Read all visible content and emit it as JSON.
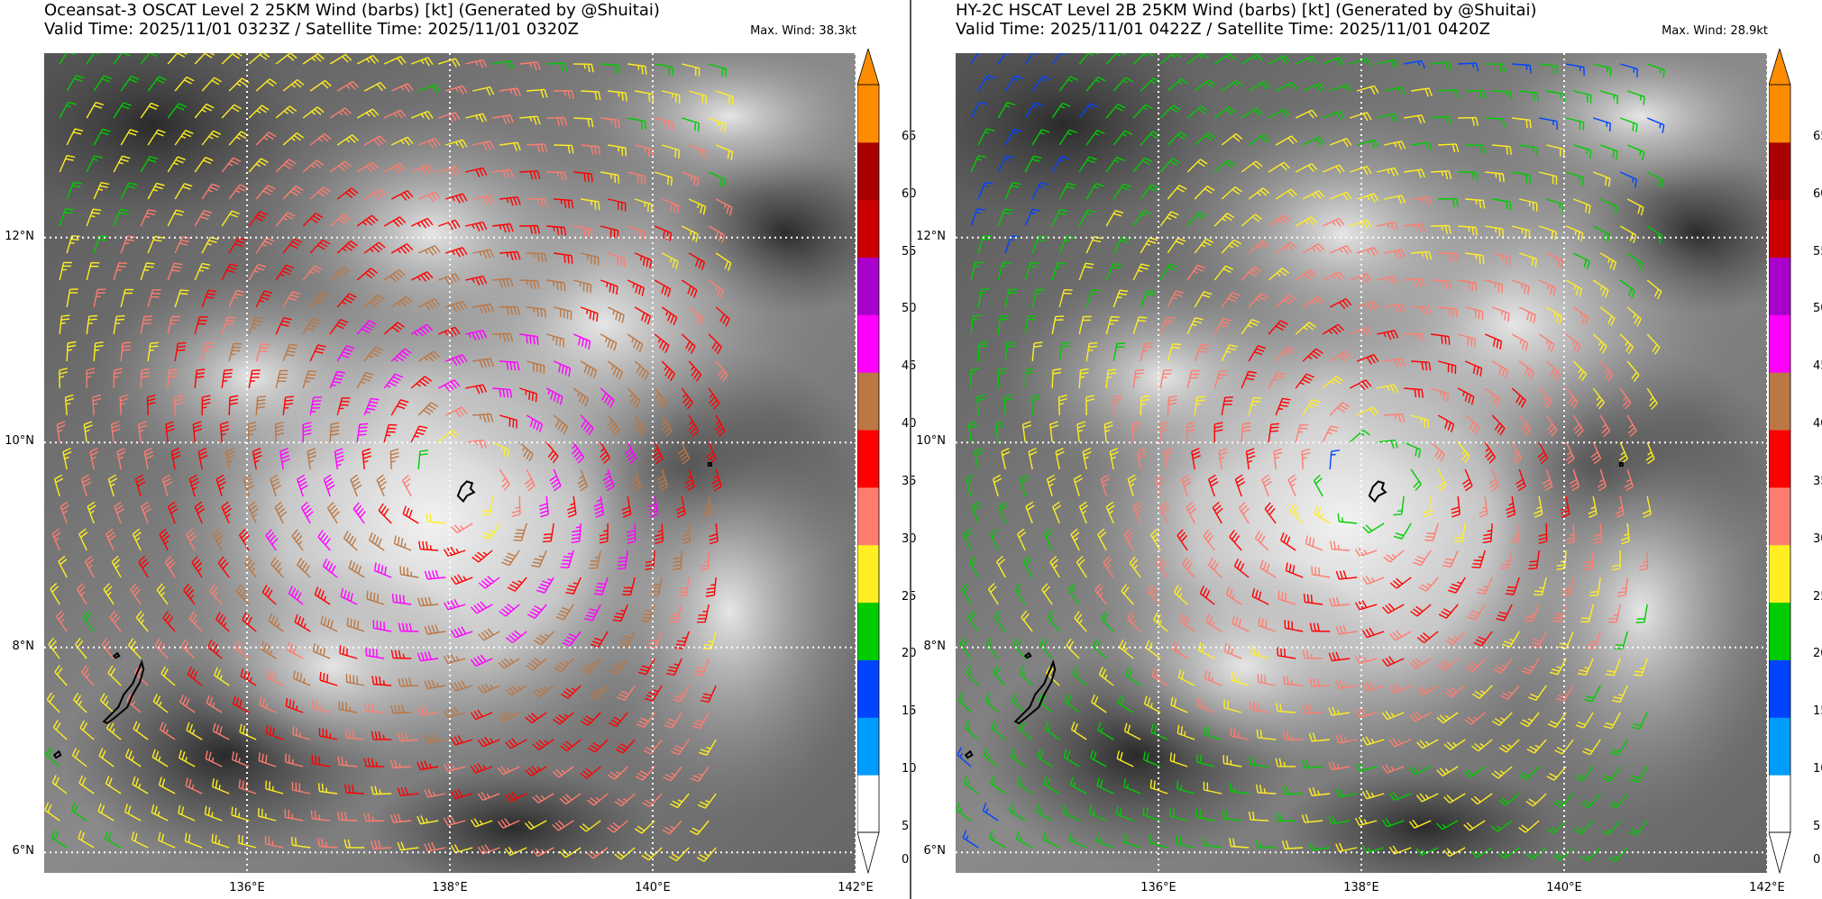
{
  "panels": [
    {
      "id": "left",
      "title_line1": "Oceansat-3 OSCAT Level 2 25KM Wind (barbs) [kt] (Generated by @Shuitai)",
      "title_line2": "Valid Time: 2025/11/01 0323Z / Satellite Time: 2025/11/01 0320Z",
      "max_wind": "Max. Wind: 38.3kt",
      "max_wind_kt": 38.3
    },
    {
      "id": "right",
      "title_line1": "HY-2C HSCAT Level 2B 25KM Wind (barbs) [kt] (Generated by @Shuitai)",
      "title_line2": "Valid Time: 2025/11/01 0422Z / Satellite Time: 2025/11/01 0420Z",
      "max_wind": "Max. Wind: 28.9kt",
      "max_wind_kt": 28.9
    }
  ],
  "map_extent": {
    "lon": [
      134,
      142
    ],
    "lat": [
      5.8,
      13.8
    ]
  },
  "lat_ticks": [
    "12°N",
    "10°N",
    "8°N",
    "6°N"
  ],
  "lat_values": [
    12,
    10,
    8,
    6
  ],
  "lon_ticks": [
    "136°E",
    "138°E",
    "140°E",
    "142°E"
  ],
  "lon_values": [
    136,
    138,
    140,
    142
  ],
  "colorbar": {
    "labels": [
      "65",
      "60",
      "55",
      "50",
      "45",
      "40",
      "35",
      "30",
      "25",
      "20",
      "15",
      "10",
      "5",
      "0"
    ],
    "bins": [
      {
        "from": 0,
        "to": 5,
        "color": "#ffffff"
      },
      {
        "from": 5,
        "to": 10,
        "color": "#009cff"
      },
      {
        "from": 10,
        "to": 15,
        "color": "#0044ff"
      },
      {
        "from": 15,
        "to": 20,
        "color": "#00cc00"
      },
      {
        "from": 20,
        "to": 25,
        "color": "#ffee22"
      },
      {
        "from": 25,
        "to": 30,
        "color": "#ff7d70"
      },
      {
        "from": 30,
        "to": 35,
        "color": "#ff0000"
      },
      {
        "from": 35,
        "to": 40,
        "color": "#bb7744"
      },
      {
        "from": 40,
        "to": 45,
        "color": "#ff00ff"
      },
      {
        "from": 45,
        "to": 50,
        "color": "#aa00cc"
      },
      {
        "from": 50,
        "to": 55,
        "color": "#cc0000"
      },
      {
        "from": 55,
        "to": 60,
        "color": "#aa0000"
      },
      {
        "from": 60,
        "to": 65,
        "color": "#ff8c00"
      }
    ],
    "extend_color": "#ff8c00"
  },
  "wind_field": {
    "center_lon": 138.1,
    "center_lat": 9.6,
    "circulation": "cyclonic"
  }
}
